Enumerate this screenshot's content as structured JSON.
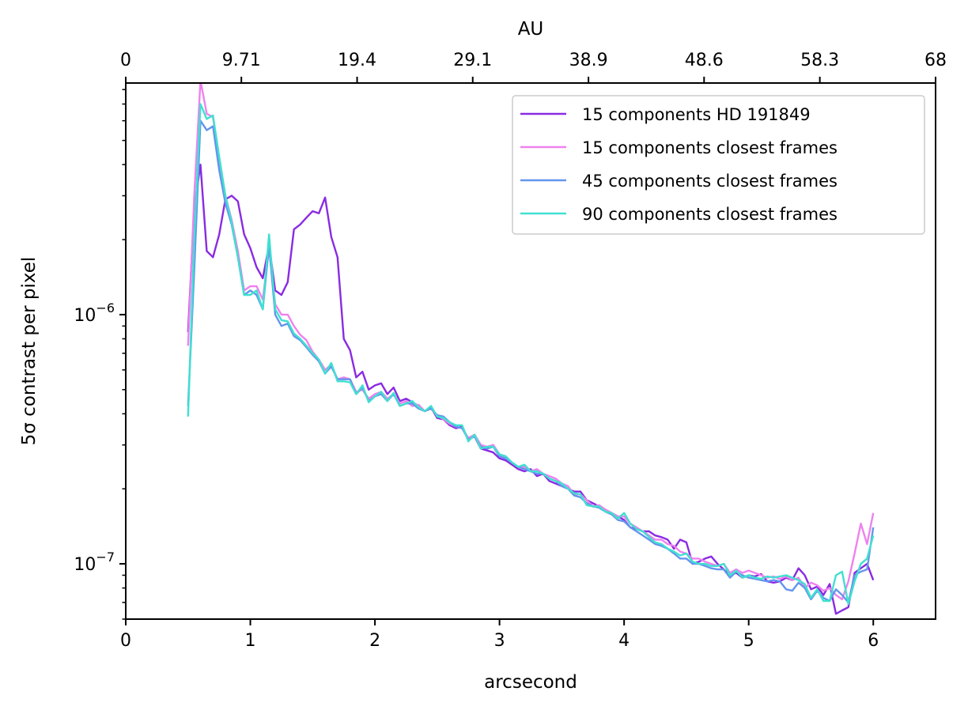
{
  "chart_data": {
    "type": "line",
    "xlabel": "arcsecond",
    "ylabel": "5σ contrast per pixel",
    "top_xlabel": "AU",
    "xlim": [
      0,
      6.5
    ],
    "ylim": [
      6e-08,
      8.5e-06
    ],
    "yscale": "log",
    "xticks": [
      0,
      1,
      2,
      3,
      4,
      5,
      6
    ],
    "xtick_labels": [
      "0",
      "1",
      "2",
      "3",
      "4",
      "5",
      "6"
    ],
    "top_xticks_arcsec": [
      0,
      0.928,
      1.857,
      2.785,
      3.714,
      4.642,
      5.571,
      6.5
    ],
    "top_xtick_labels": [
      "0",
      "9.71",
      "19.4",
      "29.1",
      "38.9",
      "48.6",
      "58.3",
      "68"
    ],
    "yticks": [
      1e-07,
      1e-06
    ],
    "ytick_labels": [
      {
        "base": "10",
        "exp": "−7"
      },
      {
        "base": "10",
        "exp": "−6"
      }
    ],
    "legend_position": "upper right",
    "grid": false,
    "x": [
      0.5,
      0.55,
      0.6,
      0.65,
      0.7,
      0.75,
      0.8,
      0.85,
      0.9,
      0.95,
      1.0,
      1.05,
      1.1,
      1.15,
      1.2,
      1.25,
      1.3,
      1.35,
      1.4,
      1.45,
      1.5,
      1.55,
      1.6,
      1.65,
      1.7,
      1.75,
      1.8,
      1.85,
      1.9,
      1.95,
      2.0,
      2.05,
      2.1,
      2.15,
      2.2,
      2.25,
      2.3,
      2.35,
      2.4,
      2.45,
      2.5,
      2.55,
      2.6,
      2.65,
      2.7,
      2.75,
      2.8,
      2.85,
      2.9,
      2.95,
      3.0,
      3.05,
      3.1,
      3.15,
      3.2,
      3.25,
      3.3,
      3.35,
      3.4,
      3.45,
      3.5,
      3.55,
      3.6,
      3.65,
      3.7,
      3.75,
      3.8,
      3.85,
      3.9,
      3.95,
      4.0,
      4.05,
      4.1,
      4.15,
      4.2,
      4.25,
      4.3,
      4.35,
      4.4,
      4.45,
      4.5,
      4.55,
      4.6,
      4.65,
      4.7,
      4.75,
      4.8,
      4.85,
      4.9,
      4.95,
      5.0,
      5.05,
      5.1,
      5.15,
      5.2,
      5.25,
      5.3,
      5.35,
      5.4,
      5.45,
      5.5,
      5.55,
      5.6,
      5.65,
      5.7,
      5.75,
      5.8,
      5.85,
      5.9,
      5.95,
      6.0
    ],
    "series": [
      {
        "name": "15 components HD 191849",
        "color": "#8a2be2",
        "values": [
          8.5e-07,
          2.7e-06,
          4e-06,
          1.8e-06,
          1.7e-06,
          2.1e-06,
          2.9e-06,
          3e-06,
          2.85e-06,
          2.1e-06,
          1.85e-06,
          1.55e-06,
          1.4e-06,
          1.9e-06,
          1.25e-06,
          1.2e-06,
          1.35e-06,
          2.2e-06,
          2.3e-06,
          2.45e-06,
          2.6e-06,
          2.55e-06,
          2.95e-06,
          2.05e-06,
          1.7e-06,
          8e-07,
          7.2e-07,
          5.6e-07,
          5.9e-07,
          5e-07,
          5.2e-07,
          5.3e-07,
          4.8e-07,
          5.1e-07,
          4.5e-07,
          4.6e-07,
          4.45e-07,
          4.3e-07,
          4.1e-07,
          4.25e-07,
          3.85e-07,
          3.8e-07,
          3.6e-07,
          3.5e-07,
          3.55e-07,
          3.15e-07,
          3.25e-07,
          2.9e-07,
          2.85e-07,
          2.8e-07,
          2.65e-07,
          2.6e-07,
          2.5e-07,
          2.4e-07,
          2.35e-07,
          2.4e-07,
          2.25e-07,
          2.3e-07,
          2.15e-07,
          2.1e-07,
          2.05e-07,
          2e-07,
          1.95e-07,
          1.95e-07,
          1.8e-07,
          1.75e-07,
          1.7e-07,
          1.65e-07,
          1.6e-07,
          1.55e-07,
          1.5e-07,
          1.4e-07,
          1.38e-07,
          1.35e-07,
          1.35e-07,
          1.3e-07,
          1.28e-07,
          1.25e-07,
          1.15e-07,
          1.25e-07,
          1.22e-07,
          1e-07,
          1.02e-07,
          1.05e-07,
          1.07e-07,
          1e-07,
          9.5e-08,
          9e-08,
          9.2e-08,
          8.8e-08,
          9e-08,
          8.9e-08,
          9.1e-08,
          8.5e-08,
          8.4e-08,
          8.5e-08,
          8.8e-08,
          8.6e-08,
          9.6e-08,
          9e-08,
          7.9e-08,
          8.1e-08,
          7.5e-08,
          8.3e-08,
          6.3e-08,
          6.5e-08,
          6.7e-08,
          9.2e-08,
          9.6e-08,
          1e-07,
          8.6e-08
        ]
      },
      {
        "name": "15 components closest frames",
        "color": "#ee82ee",
        "values": [
          7.5e-07,
          3e-06,
          8.7e-06,
          6.4e-06,
          6.2e-06,
          4.2e-06,
          3e-06,
          2.4e-06,
          1.8e-06,
          1.25e-06,
          1.3e-06,
          1.3e-06,
          1.15e-06,
          1.85e-06,
          1.1e-06,
          1e-06,
          1e-06,
          9e-07,
          8.3e-07,
          7.9e-07,
          7.1e-07,
          6.6e-07,
          6e-07,
          6.3e-07,
          5.5e-07,
          5.6e-07,
          5.5e-07,
          4.9e-07,
          5e-07,
          4.6e-07,
          4.8e-07,
          4.9e-07,
          4.6e-07,
          4.8e-07,
          4.4e-07,
          4.5e-07,
          4.3e-07,
          4.35e-07,
          4.1e-07,
          4.2e-07,
          3.95e-07,
          3.8e-07,
          3.65e-07,
          3.55e-07,
          3.5e-07,
          3.2e-07,
          3.3e-07,
          3e-07,
          2.95e-07,
          3e-07,
          2.75e-07,
          2.7e-07,
          2.55e-07,
          2.45e-07,
          2.45e-07,
          2.35e-07,
          2.4e-07,
          2.3e-07,
          2.25e-07,
          2.2e-07,
          2.1e-07,
          2.05e-07,
          1.9e-07,
          1.9e-07,
          1.8e-07,
          1.7e-07,
          1.72e-07,
          1.65e-07,
          1.6e-07,
          1.55e-07,
          1.55e-07,
          1.45e-07,
          1.4e-07,
          1.35e-07,
          1.3e-07,
          1.25e-07,
          1.25e-07,
          1.2e-07,
          1.18e-07,
          1.12e-07,
          1.1e-07,
          1.05e-07,
          1.05e-07,
          1.02e-07,
          1e-07,
          9.8e-08,
          1e-07,
          9.2e-08,
          9.5e-08,
          9.2e-08,
          9.4e-08,
          9.2e-08,
          9e-08,
          8.8e-08,
          8.9e-08,
          8.7e-08,
          8.9e-08,
          8.6e-08,
          8.8e-08,
          8e-08,
          8.4e-08,
          8.2e-08,
          7.8e-08,
          8e-08,
          7.5e-08,
          7.2e-08,
          8.5e-08,
          1.1e-07,
          1.45e-07,
          1.2e-07,
          1.6e-07
        ]
      },
      {
        "name": "45 components closest frames",
        "color": "#6495ed",
        "values": [
          4.3e-07,
          1.5e-06,
          6e-06,
          5.5e-06,
          5.7e-06,
          3.8e-06,
          2.8e-06,
          2.3e-06,
          1.7e-06,
          1.2e-06,
          1.25e-06,
          1.2e-06,
          1.05e-06,
          1.9e-06,
          1e-06,
          9e-07,
          9.2e-07,
          8.2e-07,
          7.9e-07,
          7.4e-07,
          6.9e-07,
          6.5e-07,
          5.8e-07,
          6.2e-07,
          5.5e-07,
          5.5e-07,
          5.5e-07,
          4.8e-07,
          5.1e-07,
          4.5e-07,
          4.7e-07,
          4.8e-07,
          4.5e-07,
          4.8e-07,
          4.3e-07,
          4.4e-07,
          4.4e-07,
          4.2e-07,
          4.1e-07,
          4.2e-07,
          3.95e-07,
          3.9e-07,
          3.7e-07,
          3.55e-07,
          3.5e-07,
          3.15e-07,
          3.25e-07,
          2.95e-07,
          2.9e-07,
          2.95e-07,
          2.7e-07,
          2.65e-07,
          2.55e-07,
          2.45e-07,
          2.4e-07,
          2.35e-07,
          2.3e-07,
          2.3e-07,
          2.2e-07,
          2.15e-07,
          2.05e-07,
          2e-07,
          1.88e-07,
          1.85e-07,
          1.75e-07,
          1.7e-07,
          1.68e-07,
          1.62e-07,
          1.58e-07,
          1.5e-07,
          1.48e-07,
          1.4e-07,
          1.35e-07,
          1.3e-07,
          1.25e-07,
          1.2e-07,
          1.18e-07,
          1.15e-07,
          1.1e-07,
          1.05e-07,
          1.05e-07,
          1e-07,
          1e-07,
          9.8e-08,
          9.6e-08,
          9.5e-08,
          9.5e-08,
          8.8e-08,
          9.3e-08,
          9e-08,
          8.8e-08,
          8.7e-08,
          8.6e-08,
          8.5e-08,
          8.6e-08,
          8.5e-08,
          7.9e-08,
          7.8e-08,
          8.4e-08,
          8e-08,
          7.2e-08,
          7.8e-08,
          7.3e-08,
          7.1e-08,
          7.9e-08,
          7.5e-08,
          7e-08,
          9e-08,
          9.3e-08,
          9.5e-08,
          1.4e-07
        ]
      },
      {
        "name": "90 components closest frames",
        "color": "#40e0d0",
        "values": [
          3.9e-07,
          2e-06,
          7e-06,
          6.1e-06,
          6.3e-06,
          4.3e-06,
          3e-06,
          2.35e-06,
          1.7e-06,
          1.2e-06,
          1.2e-06,
          1.25e-06,
          1.05e-06,
          2.1e-06,
          1.05e-06,
          9.5e-07,
          9.4e-07,
          8.4e-07,
          8e-07,
          7.5e-07,
          7e-07,
          6.6e-07,
          5.8e-07,
          6.4e-07,
          5.4e-07,
          5.4e-07,
          5.35e-07,
          4.8e-07,
          5.2e-07,
          4.45e-07,
          4.7e-07,
          4.9e-07,
          4.5e-07,
          4.85e-07,
          4.3e-07,
          4.4e-07,
          4.5e-07,
          4.25e-07,
          4.1e-07,
          4.3e-07,
          3.9e-07,
          3.85e-07,
          3.7e-07,
          3.6e-07,
          3.6e-07,
          3.1e-07,
          3.3e-07,
          2.9e-07,
          2.95e-07,
          2.95e-07,
          2.75e-07,
          2.7e-07,
          2.55e-07,
          2.45e-07,
          2.5e-07,
          2.35e-07,
          2.35e-07,
          2.3e-07,
          2.2e-07,
          2.15e-07,
          2.1e-07,
          2e-07,
          1.92e-07,
          1.9e-07,
          1.72e-07,
          1.7e-07,
          1.7e-07,
          1.62e-07,
          1.6e-07,
          1.52e-07,
          1.6e-07,
          1.45e-07,
          1.38e-07,
          1.35e-07,
          1.28e-07,
          1.22e-07,
          1.2e-07,
          1.15e-07,
          1.12e-07,
          1.08e-07,
          1.1e-07,
          1.02e-07,
          1e-07,
          1e-07,
          9.8e-08,
          9.8e-08,
          1e-07,
          9e-08,
          9.4e-08,
          8.8e-08,
          9e-08,
          8.8e-08,
          8.7e-08,
          8.9e-08,
          8.8e-08,
          8.9e-08,
          9e-08,
          8.8e-08,
          8.6e-08,
          8.3e-08,
          7.3e-08,
          7.9e-08,
          7.1e-08,
          7.1e-08,
          9e-08,
          9.3e-08,
          6.9e-08,
          8.5e-08,
          1e-07,
          1.05e-07,
          1.3e-07
        ]
      }
    ]
  }
}
